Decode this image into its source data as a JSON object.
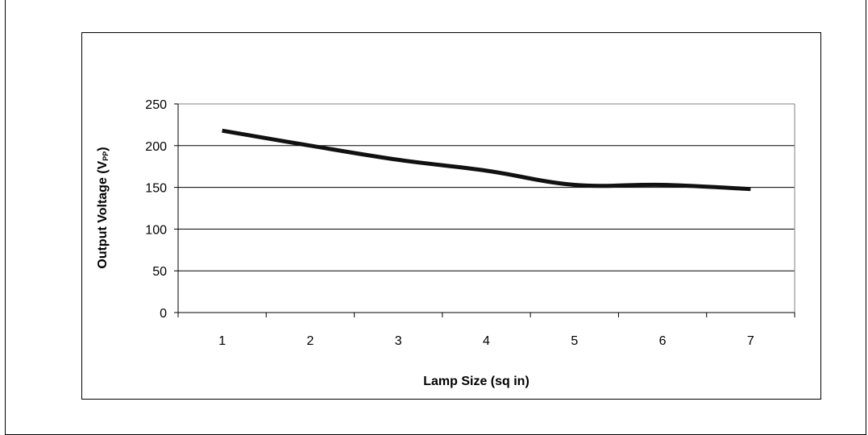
{
  "chart_data": {
    "type": "line",
    "x": [
      1,
      2,
      3,
      4,
      5,
      6,
      7
    ],
    "categories": [
      "1",
      "2",
      "3",
      "4",
      "5",
      "6",
      "7"
    ],
    "series": [
      {
        "values": [
          218,
          200,
          183,
          170,
          153,
          153,
          148
        ],
        "color": "#111111"
      }
    ],
    "xlabel": "Lamp Size (sq in)",
    "ylabel": "Output Voltage (V",
    "ylabel_subscript": "PP",
    "ylabel_suffix": ")",
    "ylim": [
      0,
      250
    ],
    "yticks": [
      0,
      50,
      100,
      150,
      200,
      250
    ],
    "grid": true
  }
}
